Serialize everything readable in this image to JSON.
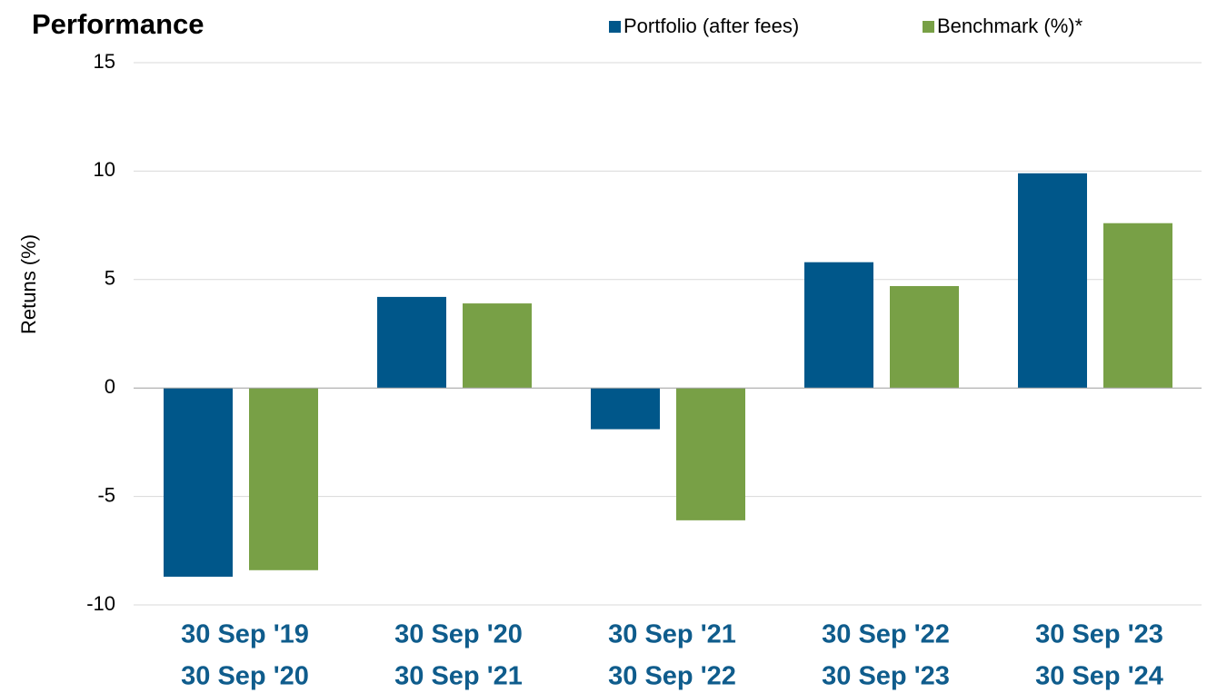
{
  "chart_data": {
    "type": "bar",
    "title": "Performance",
    "y_label": "Retuns (%)",
    "categories": [
      [
        "30 Sep '19",
        "30 Sep '20"
      ],
      [
        "30 Sep '20",
        "30 Sep '21"
      ],
      [
        "30 Sep '21",
        "30 Sep '22"
      ],
      [
        "30 Sep '22",
        "30 Sep '23"
      ],
      [
        "30 Sep '23",
        "30 Sep '24"
      ]
    ],
    "series": [
      {
        "name": "Portfolio (after fees)",
        "color": "#00578a",
        "values": [
          -8.7,
          4.2,
          -1.9,
          5.8,
          9.9
        ]
      },
      {
        "name": "Benchmark (%)*",
        "color": "#78a046",
        "values": [
          -8.4,
          3.9,
          -6.1,
          4.7,
          7.6
        ]
      }
    ],
    "ylim": [
      -10,
      15
    ],
    "yticks": [
      -10,
      -5,
      0,
      5,
      10,
      15
    ],
    "grid": true
  }
}
